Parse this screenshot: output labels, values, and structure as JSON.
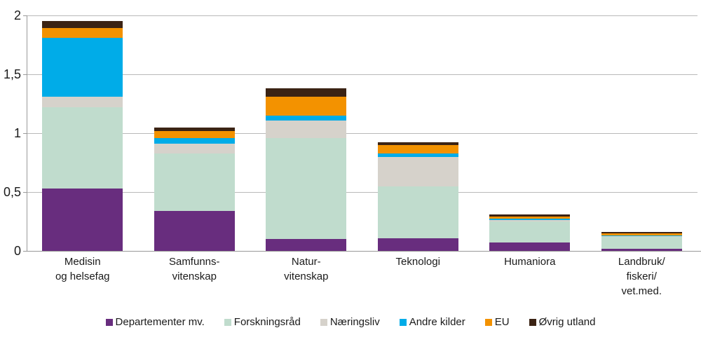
{
  "chart_data": {
    "type": "bar",
    "stacked": true,
    "title": "",
    "xlabel": "",
    "ylabel": "",
    "grid": true,
    "legend_position": "bottom",
    "ylim": [
      0,
      2
    ],
    "yticks": [
      {
        "value": 0,
        "label": "0"
      },
      {
        "value": 0.5,
        "label": "0,5"
      },
      {
        "value": 1,
        "label": "1"
      },
      {
        "value": 1.5,
        "label": "1,5"
      },
      {
        "value": 2,
        "label": "2"
      }
    ],
    "categories": [
      {
        "label": "Medisin og helsefag",
        "lines": [
          "Medisin",
          "og helsefag"
        ]
      },
      {
        "label": "Samfunnsvitenskap",
        "lines": [
          "Samfunns-",
          "vitenskap"
        ]
      },
      {
        "label": "Naturvitenskap",
        "lines": [
          "Natur-",
          "vitenskap"
        ]
      },
      {
        "label": "Teknologi",
        "lines": [
          "Teknologi"
        ]
      },
      {
        "label": "Humaniora",
        "lines": [
          "Humaniora"
        ]
      },
      {
        "label": "Landbruk/fiskeri/vet.med.",
        "lines": [
          "Landbruk/",
          "fiskeri/",
          "vet.med."
        ]
      }
    ],
    "series": [
      {
        "name": "Departementer mv.",
        "color": "#682d7e",
        "values": [
          0.53,
          0.34,
          0.1,
          0.11,
          0.07,
          0.02
        ]
      },
      {
        "name": "Forskningsråd",
        "color": "#c0dccd",
        "values": [
          0.69,
          0.49,
          0.86,
          0.44,
          0.18,
          0.1
        ]
      },
      {
        "name": "Næringsliv",
        "color": "#d6d2cb",
        "values": [
          0.09,
          0.08,
          0.15,
          0.25,
          0.01,
          0.005
        ]
      },
      {
        "name": "Andre kilder",
        "color": "#00ace8",
        "values": [
          0.5,
          0.05,
          0.04,
          0.03,
          0.015,
          0.005
        ]
      },
      {
        "name": "EU",
        "color": "#f39200",
        "values": [
          0.08,
          0.06,
          0.16,
          0.07,
          0.015,
          0.02
        ]
      },
      {
        "name": "Øvrig utland",
        "color": "#3b2314",
        "values": [
          0.06,
          0.03,
          0.07,
          0.02,
          0.02,
          0.01
        ]
      }
    ],
    "totals": [
      1.95,
      1.05,
      1.38,
      0.92,
      0.31,
      0.16
    ]
  },
  "colors": {
    "background": "#ffffff",
    "gridline": "#b9b9b9",
    "axis": "#999999",
    "text": "#1a1a1a"
  }
}
